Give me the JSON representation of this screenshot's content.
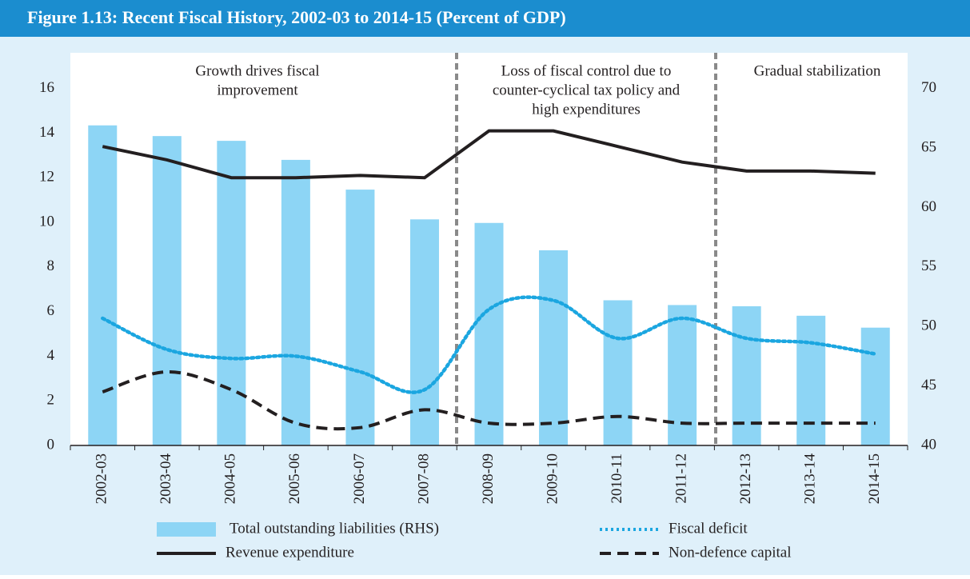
{
  "chart_data": {
    "type": "bar_line",
    "title": "Figure 1.13:  Recent Fiscal History, 2002-03 to 2014-15 (Percent of GDP)",
    "categories": [
      "2002-03",
      "2003-04",
      "2004-05",
      "2005-06",
      "2006-07",
      "2007-08",
      "2008-09",
      "2009-10",
      "2010-11",
      "2011-12",
      "2012-13",
      "2013-14",
      "2014-15"
    ],
    "annotations": [
      {
        "lines": [
          "Growth drives fiscal",
          "improvement"
        ]
      },
      {
        "lines": [
          "Loss of fiscal control due to",
          "counter-cyclical tax policy and",
          "high expenditures"
        ]
      },
      {
        "lines": [
          "Gradual stabilization"
        ]
      }
    ],
    "series": [
      {
        "name": "Total outstanding liabilities (RHS)",
        "type": "bar",
        "axis": "y2",
        "color": "#8dd5f5",
        "values": [
          66.9,
          66.0,
          65.6,
          64.0,
          61.5,
          59.0,
          58.7,
          56.4,
          52.2,
          51.8,
          51.7,
          50.9,
          49.9
        ]
      },
      {
        "name": "Revenue expenditure",
        "type": "line",
        "color": "#231f20",
        "dash": "solid",
        "values": [
          13.4,
          12.8,
          12.0,
          12.0,
          12.1,
          12.0,
          14.1,
          14.1,
          13.4,
          12.7,
          12.3,
          12.3,
          12.2
        ]
      },
      {
        "name": "Fiscal deficit",
        "type": "line",
        "color": "#1ba6e0",
        "dash": "dotted",
        "values": [
          5.7,
          4.3,
          3.9,
          4.0,
          3.3,
          2.5,
          6.1,
          6.5,
          4.8,
          5.7,
          4.8,
          4.6,
          4.1
        ]
      },
      {
        "name": "Non-defence capital",
        "type": "line",
        "color": "#231f20",
        "dash": "dashed",
        "values": [
          2.4,
          3.3,
          2.5,
          1.0,
          0.8,
          1.6,
          1.0,
          1.0,
          1.3,
          1.0,
          1.0,
          1.0,
          1.0
        ]
      }
    ],
    "ylim": [
      0,
      17.6
    ],
    "yticks": [
      0,
      2,
      4,
      6,
      8,
      10,
      12,
      14,
      16
    ],
    "y2lim": [
      40,
      73
    ],
    "y2ticks": [
      40,
      45,
      50,
      55,
      60,
      65,
      70
    ],
    "grid": false
  }
}
